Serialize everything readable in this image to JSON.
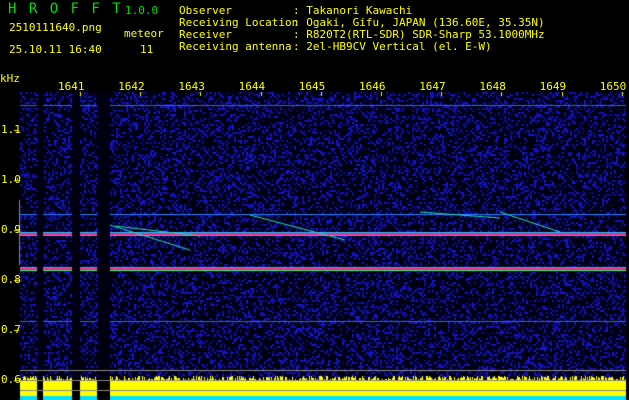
{
  "app": {
    "name": "H R O F F T",
    "version": "1.0.0"
  },
  "file": {
    "name": "2510111640.png",
    "datetime": "25.10.11 16:40"
  },
  "meteor": {
    "label": "meteor",
    "count": "11"
  },
  "info": [
    {
      "label": "Observer",
      "value": ": Takanori Kawachi"
    },
    {
      "label": "Receiving Location",
      "value": ": Ogaki, Gifu, JAPAN (136.60E, 35.35N)"
    },
    {
      "label": "Receiver",
      "value": ": R820T2(RTL-SDR) SDR-Sharp 53.1000MHz"
    },
    {
      "label": "Receiving antenna",
      "value": ": 2el-HB9CV Vertical (el. E-W)"
    }
  ],
  "axis": {
    "y_unit": "kHz",
    "y_ticks": [
      "1.1",
      "1.0",
      "0.9",
      "0.8",
      "0.7",
      "0.6"
    ],
    "x_ticks": [
      "1641",
      "1642",
      "1643",
      "1644",
      "1645",
      "1646",
      "1647",
      "1648",
      "1649",
      "1650"
    ]
  },
  "colors": {
    "text": "#ffff00",
    "title": "#00e000",
    "background": "#000000",
    "noise": "#0a0a90",
    "signal": "#ff2080",
    "level": "#ffff00",
    "level_low": "#00e0ff"
  }
}
